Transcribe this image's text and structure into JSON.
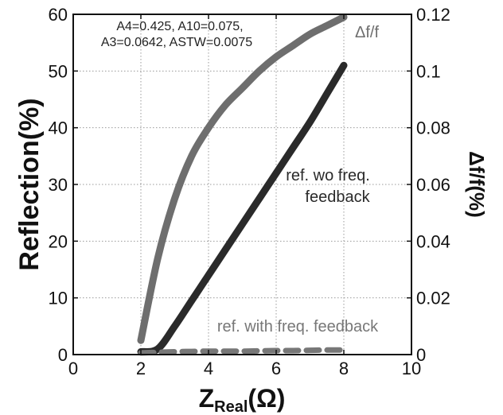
{
  "chart_data": {
    "type": "line",
    "x": [
      2.0,
      2.5,
      3.0,
      3.5,
      4.0,
      4.5,
      5.0,
      5.5,
      6.0,
      6.5,
      7.0,
      7.5,
      8.0
    ],
    "x_label_main": "Z",
    "x_label_sub": "Real",
    "x_label_unit": "(Ω)",
    "ylabel": "Reflection(%)",
    "y2label": "Δf/f(%)",
    "xlim": [
      0,
      10
    ],
    "ylim": [
      0,
      60
    ],
    "y2lim": [
      0,
      0.12
    ],
    "xticks": [
      "0",
      "2",
      "4",
      "6",
      "8",
      "10"
    ],
    "yticks": [
      "0",
      "10",
      "20",
      "30",
      "40",
      "50",
      "60"
    ],
    "y2ticks": [
      "0",
      "0.02",
      "0.04",
      "0.06",
      "0.08",
      "0.1",
      "0.12"
    ],
    "grid": true,
    "params_line1": "A4=0.425, A10=0.075,",
    "params_line2": "A3=0.0642, ASTW=0.0075",
    "series": [
      {
        "name": "Δf/f",
        "axis": "right",
        "color": "#6e6e6e",
        "values": [
          0.005,
          0.034,
          0.055,
          0.07,
          0.08,
          0.088,
          0.094,
          0.1,
          0.105,
          0.109,
          0.113,
          0.116,
          0.119
        ]
      },
      {
        "name": "ref. wo freq. feedback",
        "name_line1": "ref. wo freq.",
        "name_line2": "feedback",
        "axis": "left",
        "color": "#2a2a2a",
        "values": [
          0.5,
          1.0,
          5.0,
          9.5,
          14.0,
          18.5,
          23.0,
          27.5,
          32.0,
          36.5,
          41.0,
          46.0,
          51.0
        ]
      },
      {
        "name": "ref. with freq. feedback",
        "axis": "left",
        "color": "#777777",
        "values": [
          0.3,
          0.4,
          0.5,
          0.55,
          0.6,
          0.6,
          0.6,
          0.65,
          0.7,
          0.7,
          0.75,
          0.8,
          0.8
        ]
      }
    ]
  }
}
